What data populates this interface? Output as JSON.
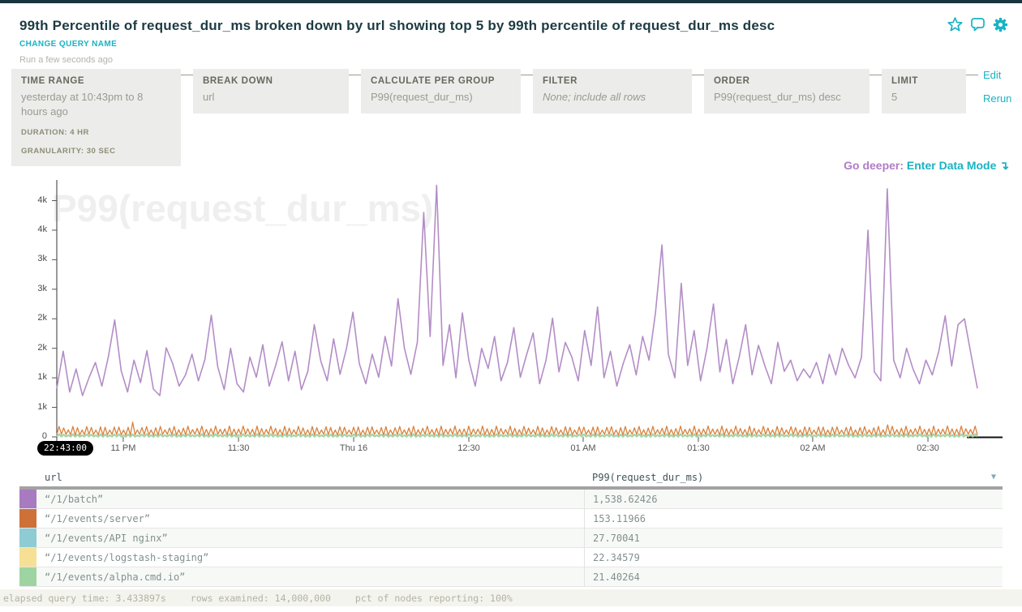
{
  "header": {
    "title": "99th Percentile of request_dur_ms broken down by url showing top 5 by 99th percentile of request_dur_ms desc",
    "change_query_name": "CHANGE QUERY NAME",
    "run_status": "Run a few seconds ago"
  },
  "accent_colors": {
    "teal": "#18b3c2",
    "purple": "#b07cc5"
  },
  "query_builder": {
    "time_range": {
      "label": "TIME RANGE",
      "value": "yesterday at 10:43pm to 8 hours ago",
      "duration": "DURATION: 4 HR",
      "granularity": "GRANULARITY: 30 SEC"
    },
    "break_down": {
      "label": "BREAK DOWN",
      "value": "url"
    },
    "calculate": {
      "label": "CALCULATE PER GROUP",
      "value": "P99(request_dur_ms)"
    },
    "filter": {
      "label": "FILTER",
      "value": "None; include all rows"
    },
    "order": {
      "label": "ORDER",
      "value": "P99(request_dur_ms) desc"
    },
    "limit": {
      "label": "LIMIT",
      "value": "5"
    },
    "edit_label": "Edit",
    "rerun_label": "Rerun"
  },
  "go_deeper": {
    "prefix": "Go deeper:",
    "link": "Enter Data Mode",
    "arrow": "↴"
  },
  "chart_data": {
    "type": "line",
    "watermark": "P99(request_dur_ms)",
    "ylabel": "P99(request_dur_ms)",
    "ylim": [
      0,
      4350
    ],
    "grid": false,
    "legend": "none (color-keyed to table below)",
    "x_start_badge": "22:43:00",
    "x_ticks": [
      {
        "label": "11 PM",
        "t": 0.0722
      },
      {
        "label": "11:30",
        "t": 0.1974
      },
      {
        "label": "Thu 16",
        "t": 0.3225
      },
      {
        "label": "12:30",
        "t": 0.4476
      },
      {
        "label": "01 AM",
        "t": 0.5718
      },
      {
        "label": "01:30",
        "t": 0.6969
      },
      {
        "label": "02 AM",
        "t": 0.8211
      },
      {
        "label": "02:30",
        "t": 0.9463
      }
    ],
    "y_ticks": [
      {
        "v": 0,
        "label": "0"
      },
      {
        "v": 500,
        "label": "1k"
      },
      {
        "v": 1000,
        "label": "1k"
      },
      {
        "v": 1500,
        "label": "2k"
      },
      {
        "v": 2000,
        "label": "2k"
      },
      {
        "v": 2500,
        "label": "3k"
      },
      {
        "v": 3000,
        "label": "3k"
      },
      {
        "v": 3500,
        "label": "4k"
      },
      {
        "v": 4000,
        "label": "4k"
      }
    ],
    "series": [
      {
        "name": "“/1/batch”",
        "color": "#b38dc6",
        "width": 1.6,
        "values": [
          820,
          1450,
          760,
          1150,
          700,
          1000,
          1260,
          860,
          1350,
          1980,
          1120,
          760,
          1300,
          920,
          1460,
          810,
          700,
          1510,
          1240,
          860,
          1050,
          1400,
          950,
          1310,
          2060,
          1190,
          800,
          1500,
          900,
          760,
          1350,
          1010,
          1560,
          860,
          1210,
          1610,
          950,
          1450,
          800,
          1110,
          1900,
          1290,
          950,
          1660,
          1060,
          1500,
          2110,
          1240,
          900,
          1400,
          1010,
          1700,
          1200,
          2340,
          1500,
          1060,
          1600,
          3800,
          1700,
          4260,
          1210,
          1900,
          1000,
          2100,
          1300,
          860,
          1500,
          1160,
          1700,
          950,
          1260,
          1850,
          1010,
          1400,
          1760,
          900,
          1300,
          2010,
          1100,
          1600,
          1350,
          950,
          1800,
          1210,
          2200,
          1000,
          1450,
          860,
          1250,
          1560,
          1050,
          1700,
          1300,
          2100,
          3250,
          1400,
          1000,
          2600,
          1210,
          1800,
          950,
          1500,
          2250,
          1100,
          1650,
          900,
          1350,
          1900,
          1050,
          1550,
          1200,
          900,
          1600,
          1110,
          1300,
          950,
          1150,
          1000,
          1260,
          900,
          1400,
          1050,
          1500,
          1210,
          1000,
          1350,
          3500,
          1100,
          950,
          4200,
          1300,
          1000,
          1500,
          1150,
          900,
          1300,
          1050,
          1450,
          2050,
          1200,
          1900,
          2000,
          1400,
          820
        ]
      },
      {
        "name": "“/1/events/logstash-staging”",
        "color": "#f0dc94",
        "width": 1.4,
        "pattern": {
          "low": 4,
          "high": 30,
          "teeth": 200
        }
      },
      {
        "name": "“/1/events/API nginx”",
        "color": "#8ecbd4",
        "width": 1.2,
        "pattern": {
          "low": 6,
          "high": 44,
          "teeth": 200
        }
      },
      {
        "name": "“/1/events/alpha.cmd.io”",
        "color": "#a3d6a8",
        "width": 2.2,
        "pattern": {
          "low": 2,
          "high": 38,
          "teeth": 200
        }
      },
      {
        "name": "“/1/events/server”",
        "color": "#d9823f",
        "width": 1.3,
        "pattern": {
          "low": 30,
          "high": 150,
          "teeth": 200,
          "spikes": {
            "16": 250,
            "180": 205
          }
        }
      }
    ]
  },
  "table": {
    "columns": [
      "url",
      "P99(request_dur_ms)"
    ],
    "rows": [
      {
        "swatch": "#a87bc0",
        "url": "“/1/batch”",
        "value": "1,538.62426"
      },
      {
        "swatch": "#cd7138",
        "url": "“/1/events/server”",
        "value": "153.11966"
      },
      {
        "swatch": "#8ecbd4",
        "url": "“/1/events/API nginx”",
        "value": "27.70041"
      },
      {
        "swatch": "#f5e096",
        "url": "“/1/events/logstash-staging”",
        "value": "22.34579"
      },
      {
        "swatch": "#9ed4a2",
        "url": "“/1/events/alpha.cmd.io”",
        "value": "21.40264"
      }
    ]
  },
  "footer": {
    "segments": [
      "elapsed query time: 3.433897s",
      "rows examined: 14,000,000",
      "pct of nodes reporting: 100%"
    ]
  }
}
